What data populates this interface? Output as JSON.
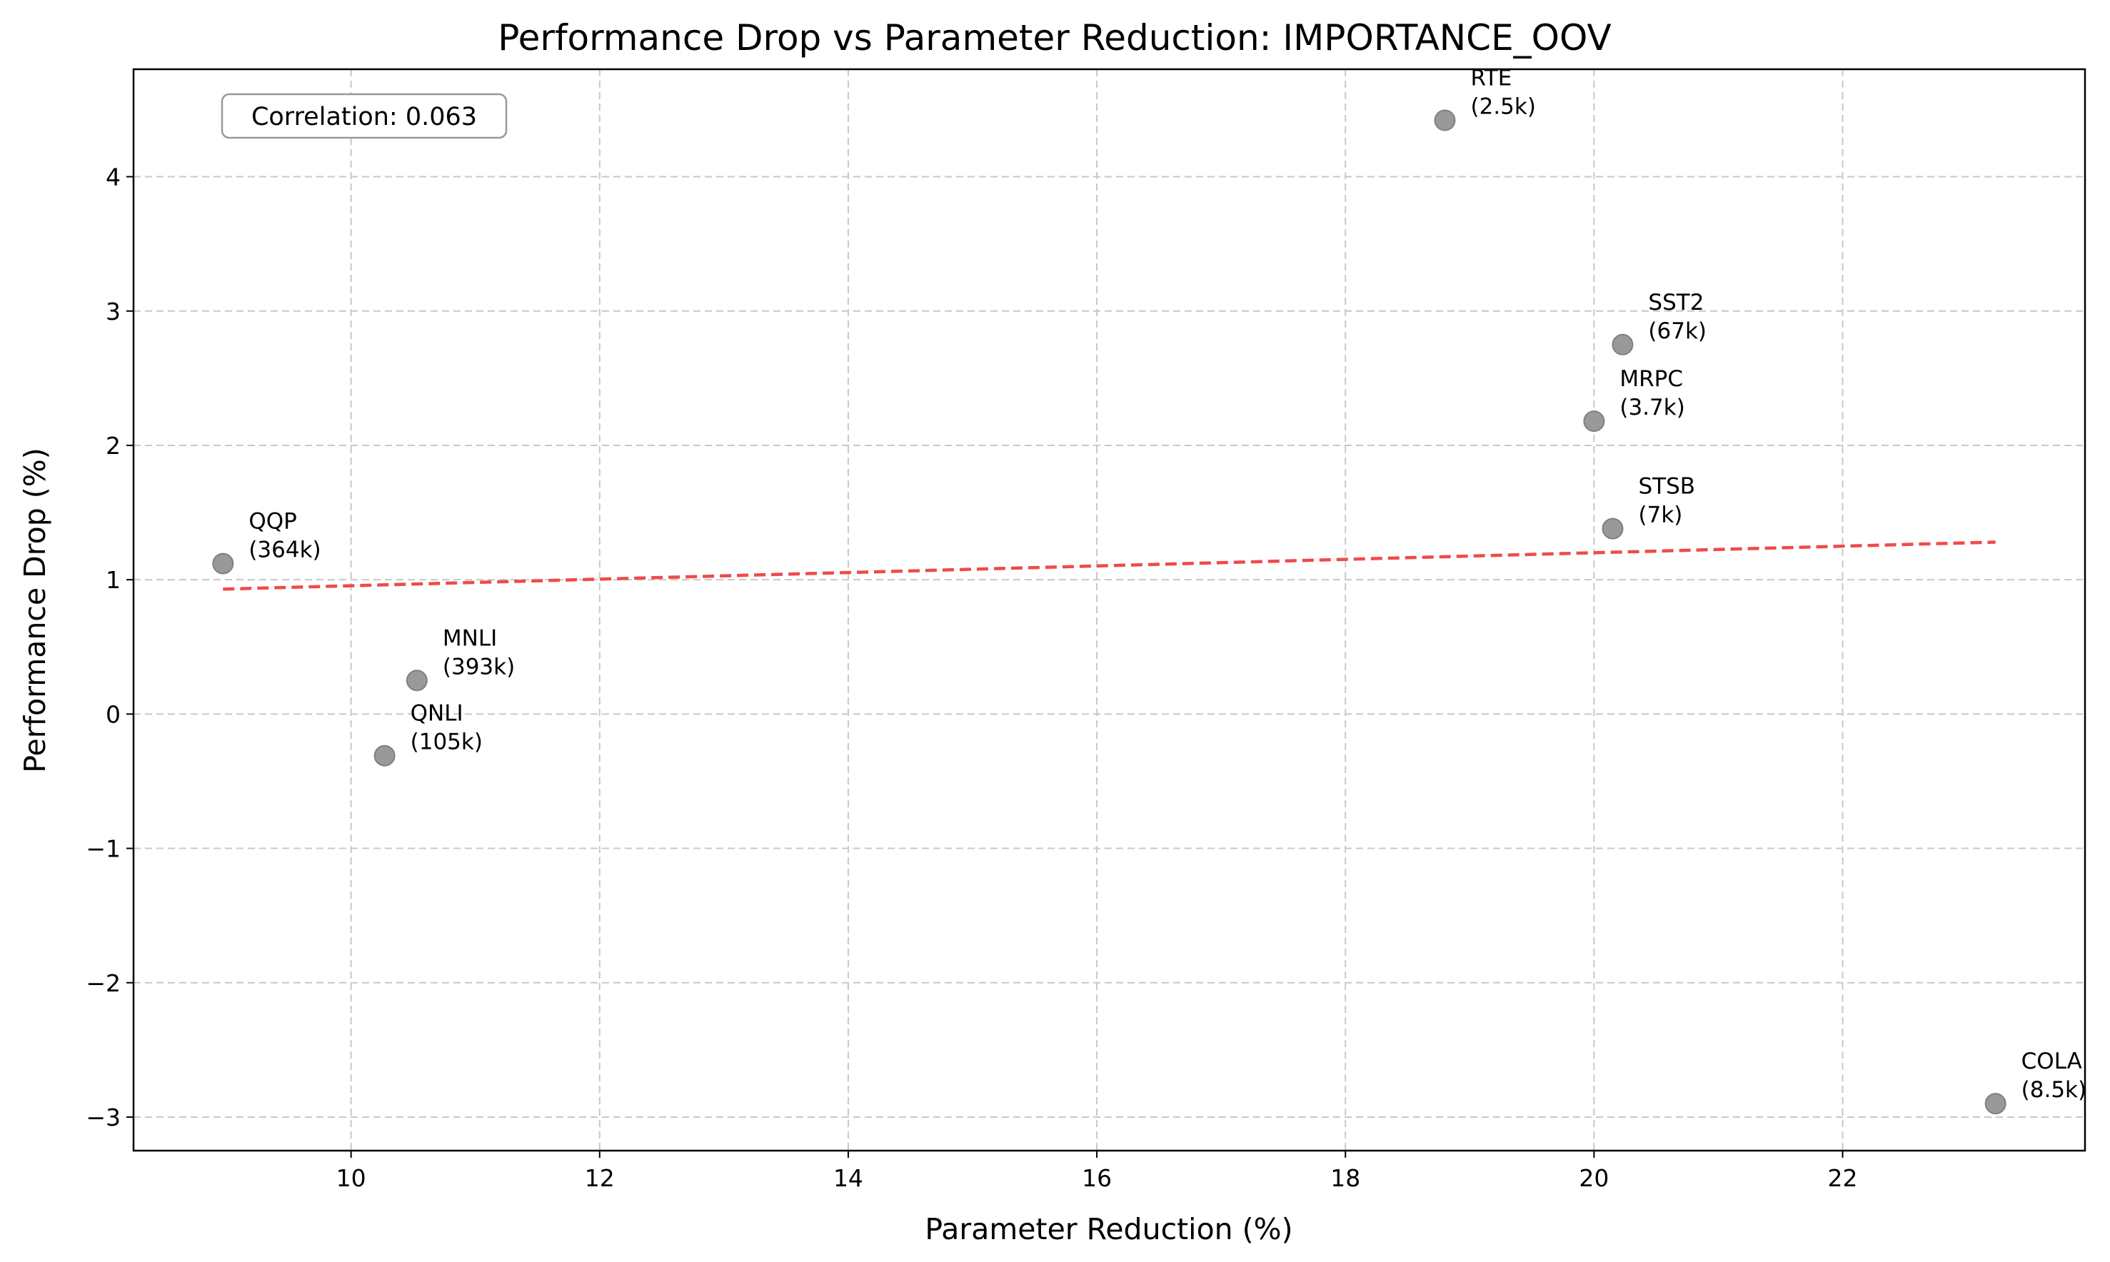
{
  "chart_data": {
    "type": "scatter",
    "title": "Performance Drop vs Parameter Reduction: IMPORTANCE_OOV",
    "xlabel": "Parameter Reduction (%)",
    "ylabel": "Performance Drop (%)",
    "xlim": [
      8.25,
      23.95
    ],
    "ylim": [
      -3.25,
      4.8
    ],
    "xticks": [
      10,
      12,
      14,
      16,
      18,
      20,
      22
    ],
    "yticks": [
      -3,
      -2,
      -1,
      0,
      1,
      2,
      3,
      4
    ],
    "xtick_labels": [
      "10",
      "12",
      "14",
      "16",
      "18",
      "20",
      "22"
    ],
    "ytick_labels": [
      "−3",
      "−2",
      "−1",
      "0",
      "1",
      "2",
      "3",
      "4"
    ],
    "grid": true,
    "points": [
      {
        "name": "QQP",
        "size": "(364k)",
        "x": 8.97,
        "y": 1.12
      },
      {
        "name": "MNLI",
        "size": "(393k)",
        "x": 10.53,
        "y": 0.25
      },
      {
        "name": "QNLI",
        "size": "(105k)",
        "x": 10.27,
        "y": -0.31
      },
      {
        "name": "RTE",
        "size": "(2.5k)",
        "x": 18.8,
        "y": 4.42
      },
      {
        "name": "SST2",
        "size": "(67k)",
        "x": 20.23,
        "y": 2.75
      },
      {
        "name": "MRPC",
        "size": "(3.7k)",
        "x": 20.0,
        "y": 2.18
      },
      {
        "name": "STSB",
        "size": "(7k)",
        "x": 20.15,
        "y": 1.38
      },
      {
        "name": "COLA",
        "size": "(8.5k)",
        "x": 23.23,
        "y": -2.9
      }
    ],
    "trendline": {
      "x": [
        8.97,
        23.23
      ],
      "y": [
        0.93,
        1.28
      ]
    },
    "correlation_text": "Correlation: 0.063",
    "colors": {
      "points": "#999999",
      "point_edge": "#808080",
      "trendline": "#f04a4a",
      "grid": "#c8c8c8"
    }
  }
}
